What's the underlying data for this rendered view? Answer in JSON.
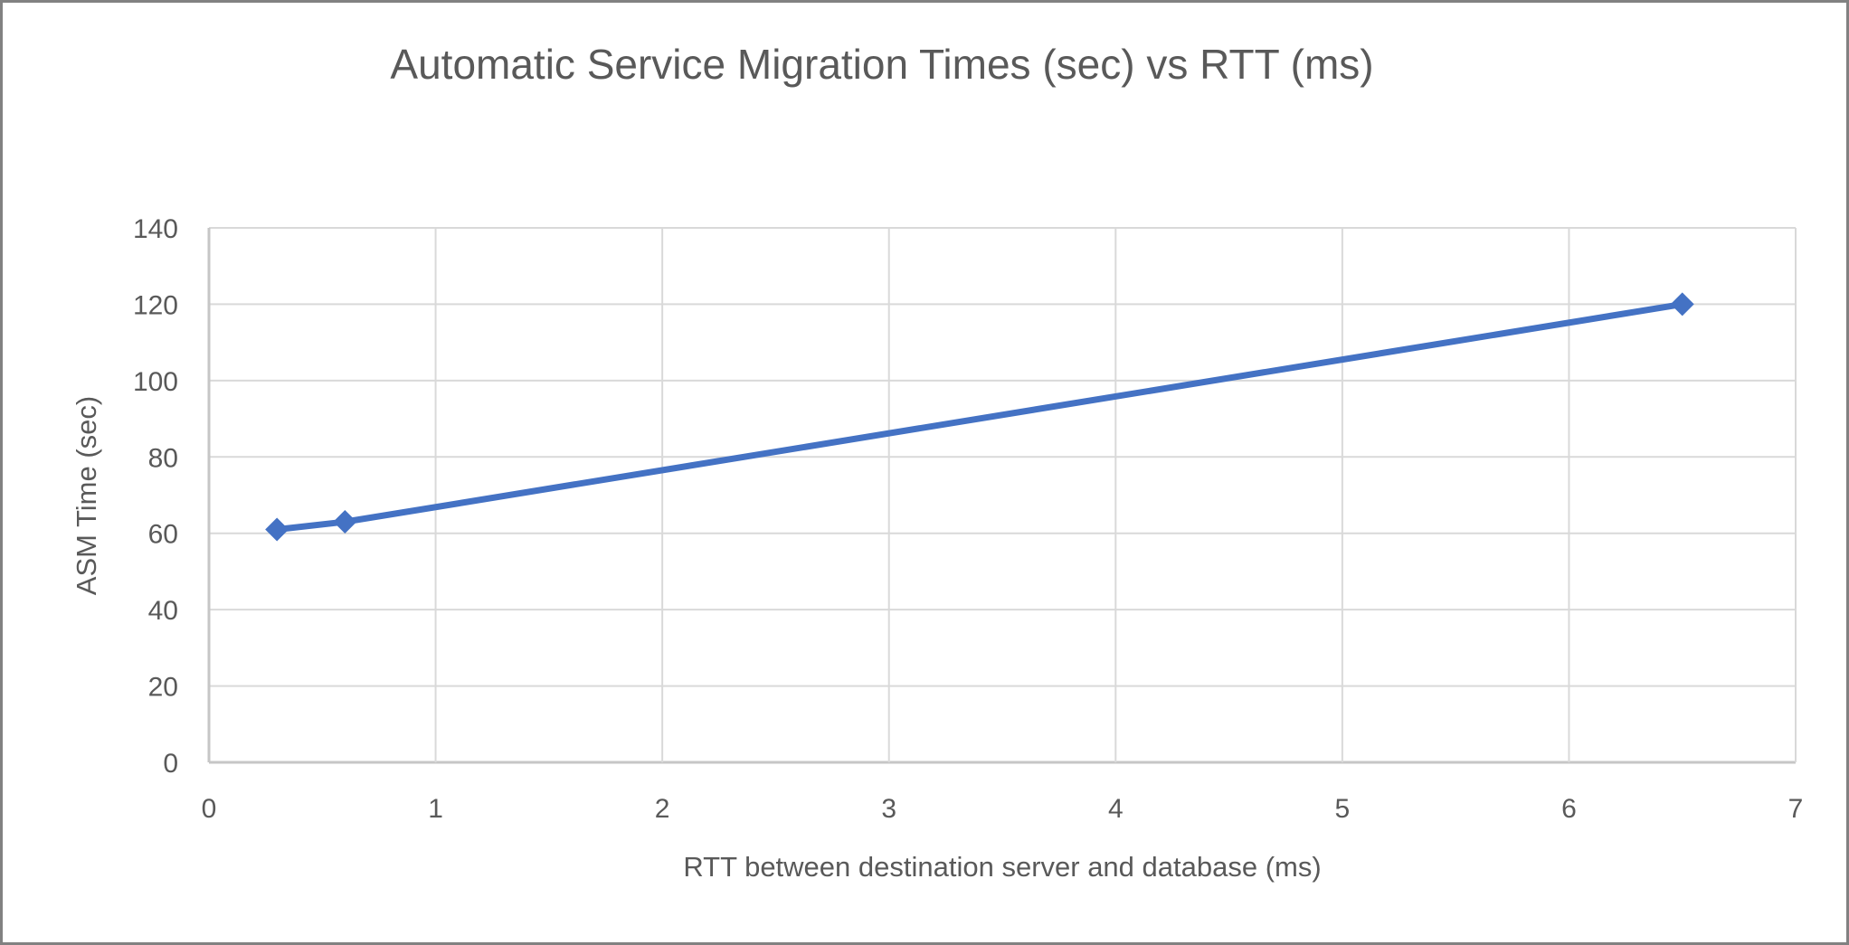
{
  "frame": {
    "background_color": "#ffffff",
    "border_color": "#818181"
  },
  "chart_data": {
    "type": "line",
    "title": "Automatic Service Migration Times (sec) vs RTT (ms)",
    "xlabel": "RTT between destination server and database (ms)",
    "ylabel": "ASM Time (sec)",
    "points": [
      {
        "x": 0.3,
        "y": 61
      },
      {
        "x": 0.6,
        "y": 63
      },
      {
        "x": 6.5,
        "y": 120
      }
    ],
    "xlim": [
      0,
      7
    ],
    "ylim": [
      0,
      140
    ],
    "x_ticks": [
      0,
      1,
      2,
      3,
      4,
      5,
      6,
      7
    ],
    "y_ticks": [
      0,
      20,
      40,
      60,
      80,
      100,
      120,
      140
    ],
    "grid": true,
    "legend": "none",
    "marker": "diamond",
    "colors": {
      "line": "#4472C4",
      "marker": "#4472C4",
      "gridline": "#D9D9D9",
      "axis_line": "#C6C6C6",
      "text": "#595959"
    }
  }
}
